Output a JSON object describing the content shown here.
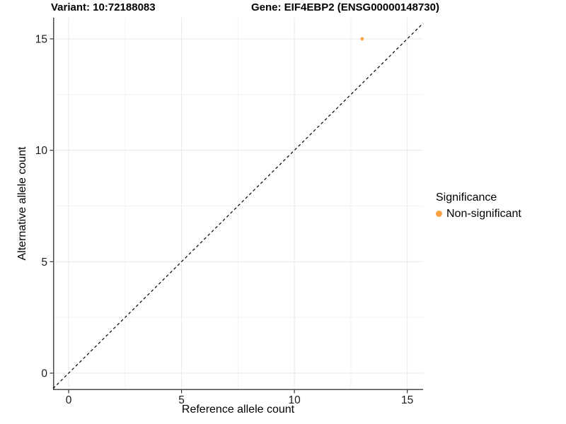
{
  "figure": {
    "title_left": "Variant: 10:72188083",
    "title_right": "Gene: EIF4EBP2 (ENSG00000148730)"
  },
  "chart_data": {
    "type": "scatter",
    "title": "Variant: 10:72188083  /  Gene: EIF4EBP2 (ENSG00000148730)",
    "xlabel": "Reference allele count",
    "ylabel": "Alternative allele count",
    "xlim": [
      -0.69,
      15.7
    ],
    "ylim": [
      -0.76,
      15.95
    ],
    "x_ticks": [
      0,
      5,
      10,
      15
    ],
    "y_ticks": [
      0,
      5,
      10,
      15
    ],
    "x_minor_ticks": [
      2.5,
      7.5,
      12.5
    ],
    "y_minor_ticks": [
      2.5,
      7.5,
      12.5
    ],
    "grid": "on",
    "series": [
      {
        "name": "Non-significant",
        "color": "#F9A242",
        "points": [
          {
            "x": 13,
            "y": 15
          }
        ]
      }
    ],
    "reference_line": {
      "type": "identity",
      "slope": 1,
      "intercept": 0,
      "style": "dashed",
      "color": "#000000"
    },
    "legend": {
      "title": "Significance",
      "position": "right",
      "items": [
        {
          "label": "Non-significant",
          "color": "#F9A242"
        }
      ]
    }
  },
  "colors": {
    "background": "#FFFFFF",
    "grid_major": "#E8E8E8",
    "grid_minor": "#F2F2F2",
    "axis_line": "#4A4A4A",
    "tick_mark": "#333333",
    "text": "#000000",
    "point": "#F9A242"
  }
}
